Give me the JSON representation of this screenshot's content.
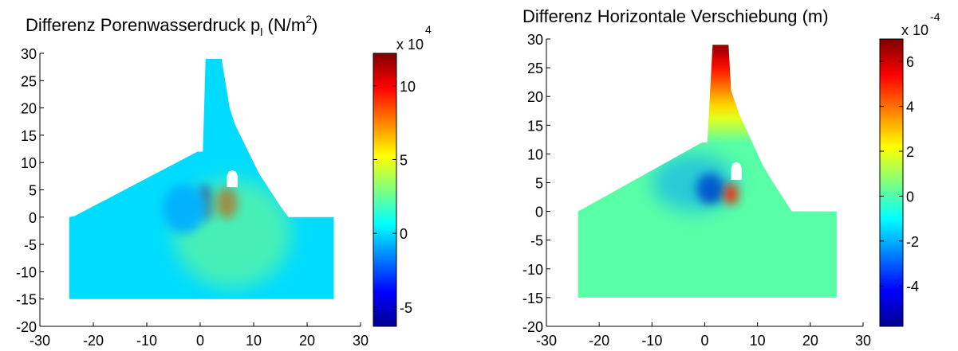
{
  "chart_data": [
    {
      "type": "heatmap",
      "title_main": "Differenz Porenwasserdruck p",
      "title_sub": "l",
      "title_unit_open": " (N/m",
      "title_unit_sup": "2",
      "title_unit_close": ")",
      "xlim": [
        -30,
        30
      ],
      "ylim": [
        -20,
        30
      ],
      "xticks": [
        -30,
        -20,
        -10,
        0,
        10,
        20,
        30
      ],
      "yticks": [
        -20,
        -15,
        -10,
        -5,
        0,
        5,
        10,
        15,
        20,
        25,
        30
      ],
      "xtick_labels": [
        "-30",
        "-20",
        "-10",
        "0",
        "10",
        "20",
        "30"
      ],
      "ytick_labels": [
        "-20",
        "-15",
        "-10",
        "-5",
        "0",
        "5",
        "10",
        "15",
        "20",
        "25",
        "30"
      ],
      "colorbar": {
        "range": [
          -6.3,
          12.2
        ],
        "ticks": [
          -5,
          0,
          5,
          10
        ],
        "tick_labels": [
          "-5",
          "0",
          "5",
          "10"
        ],
        "multiplier_base": "x 10",
        "multiplier_exp": "4"
      },
      "background_value": 0,
      "anomalies": [
        {
          "x": 1.0,
          "y": 2.5,
          "rx": 1.5,
          "ry": 3.2,
          "value": -5.0
        },
        {
          "x": 5.0,
          "y": 2.5,
          "rx": 2.0,
          "ry": 2.8,
          "value": 11.0
        },
        {
          "x": 6.0,
          "y": -3.0,
          "rx": 11.0,
          "ry": 10.0,
          "value": 3.0
        },
        {
          "x": -3.0,
          "y": 1.5,
          "rx": 4.0,
          "ry": 4.5,
          "value": -0.8
        }
      ]
    },
    {
      "type": "heatmap",
      "title_main": "Differenz Horizontale Verschiebung (m)",
      "xlim": [
        -30,
        30
      ],
      "ylim": [
        -20,
        30
      ],
      "xticks": [
        -30,
        -20,
        -10,
        0,
        10,
        20,
        30
      ],
      "yticks": [
        -20,
        -15,
        -10,
        -5,
        0,
        5,
        10,
        15,
        20,
        25,
        30
      ],
      "xtick_labels": [
        "-30",
        "-20",
        "-10",
        "0",
        "10",
        "20",
        "30"
      ],
      "ytick_labels": [
        "-20",
        "-15",
        "-10",
        "-5",
        "0",
        "5",
        "10",
        "15",
        "20",
        "25",
        "30"
      ],
      "colorbar": {
        "range": [
          -5.8,
          7.0
        ],
        "ticks": [
          -4,
          -2,
          0,
          2,
          4,
          6
        ],
        "tick_labels": [
          "-4",
          "-2",
          "0",
          "2",
          "4",
          "6"
        ],
        "multiplier_base": "x 10",
        "multiplier_exp": "-4"
      },
      "background_value": 0.1,
      "crest_gradient": {
        "y_from": 12,
        "y_to": 29,
        "value_from": 0.2,
        "value_to": 6.8
      },
      "anomalies": [
        {
          "x": 1.0,
          "y": 4.0,
          "rx": 2.6,
          "ry": 2.6,
          "value": -5.5
        },
        {
          "x": -2.0,
          "y": 5.0,
          "rx": 8.0,
          "ry": 5.0,
          "value": -2.2
        },
        {
          "x": 5.0,
          "y": 3.0,
          "rx": 1.3,
          "ry": 1.8,
          "value": 5.0
        }
      ]
    }
  ]
}
